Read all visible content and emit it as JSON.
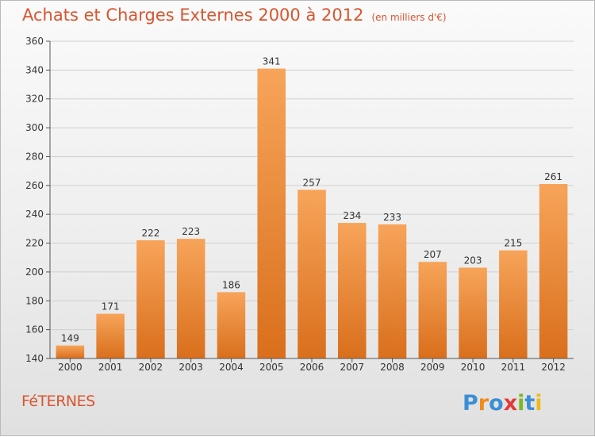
{
  "header": {
    "title": "Achats et Charges Externes 2000 à 2012",
    "unit": "(en milliers d'€)"
  },
  "footer": {
    "town": "FéTERNES",
    "logo_text": "Proxiti"
  },
  "colors": {
    "title": "#d8552f",
    "bar_top": "#f7a45a",
    "bar_bottom": "#d96f1c",
    "grid": "#d0d0d0",
    "axis": "#555555"
  },
  "chart_data": {
    "type": "bar",
    "title": "Achats et Charges Externes 2000 à 2012",
    "subtitle": "(en milliers d'€)",
    "categories": [
      "2000",
      "2001",
      "2002",
      "2003",
      "2004",
      "2005",
      "2006",
      "2007",
      "2008",
      "2009",
      "2010",
      "2011",
      "2012"
    ],
    "values": [
      149,
      171,
      222,
      223,
      186,
      341,
      257,
      234,
      233,
      207,
      203,
      215,
      261
    ],
    "ylim": [
      140,
      360
    ],
    "yticks": [
      140,
      160,
      180,
      200,
      220,
      240,
      260,
      280,
      300,
      320,
      340,
      360
    ],
    "grid": true,
    "data_labels": true
  }
}
